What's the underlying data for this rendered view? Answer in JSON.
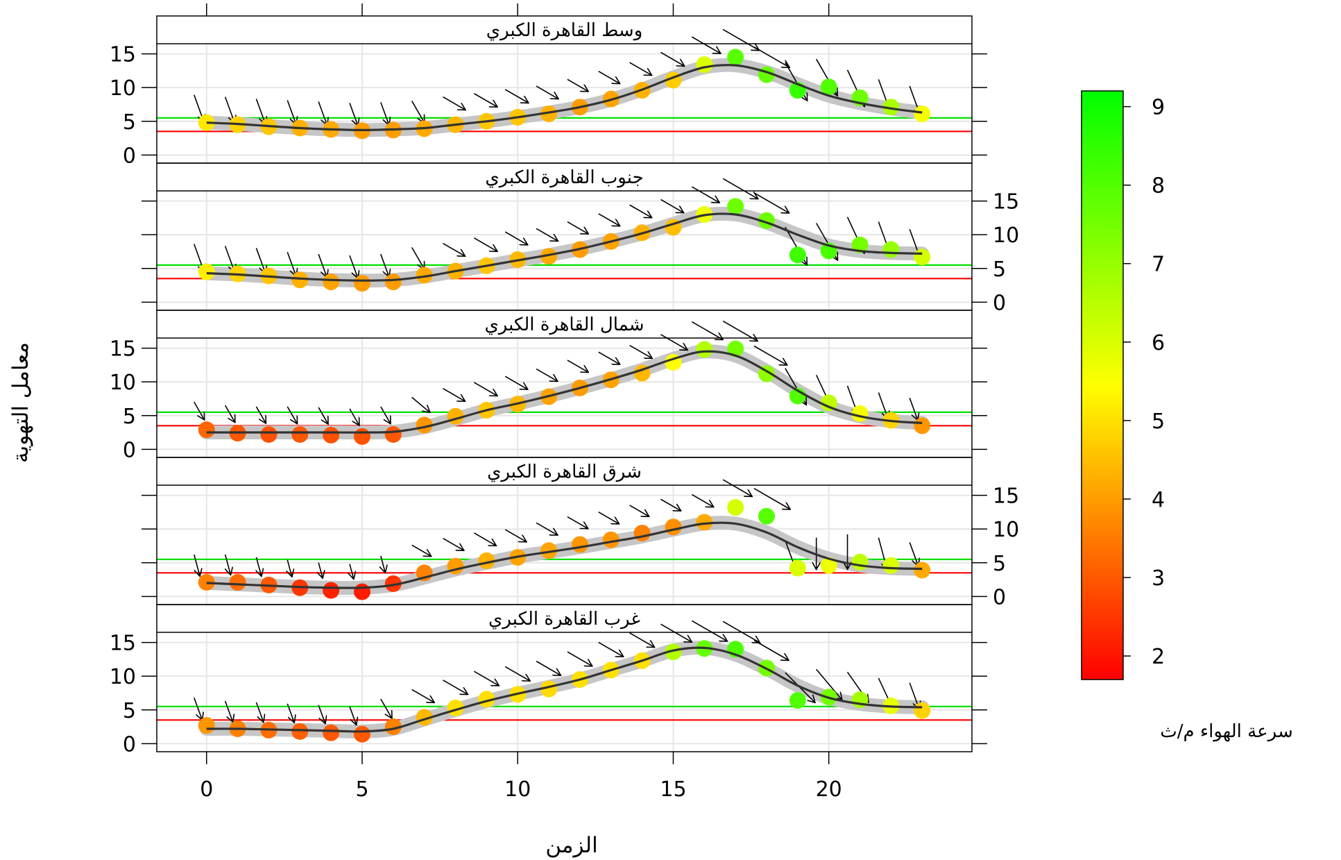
{
  "chart_data": {
    "type": "line",
    "xlabel": "الزمن",
    "ylabel": "معامل التهوية",
    "x_ticks": [
      0,
      5,
      10,
      15,
      20
    ],
    "y_ticks": [
      0,
      5,
      10,
      15
    ],
    "xlim": [
      -1.6,
      24.6
    ],
    "ylim": [
      -1.2,
      16.5
    ],
    "reference_lines": [
      {
        "name": "upper",
        "y": 5.5,
        "color": "#00e000"
      },
      {
        "name": "lower",
        "y": 3.5,
        "color": "#ff0000"
      }
    ],
    "colorbar": {
      "title": "سرعة الهواء م/ث",
      "min": 1.7,
      "max": 9.2,
      "ticks": [
        2,
        3,
        4,
        5,
        6,
        7,
        8,
        9
      ],
      "low_color": "#ff0000",
      "mid_color": "#ffff00",
      "high_color": "#00ff00"
    },
    "x": [
      0,
      1,
      2,
      3,
      4,
      5,
      6,
      7,
      8,
      9,
      10,
      11,
      12,
      13,
      14,
      15,
      16,
      17,
      18,
      19,
      20,
      21,
      22,
      23
    ],
    "panels": [
      {
        "title": "وسط القاهرة الكبري",
        "y": [
          4.8,
          4.5,
          4.2,
          4.0,
          3.8,
          3.6,
          3.7,
          3.9,
          4.5,
          5.0,
          5.6,
          6.1,
          7.1,
          8.3,
          9.6,
          11.1,
          13.4,
          14.5,
          11.9,
          9.6,
          10.1,
          8.5,
          7.1,
          6.1
        ],
        "smooth": [
          4.8,
          4.6,
          4.3,
          4.0,
          3.8,
          3.7,
          3.8,
          4.0,
          4.5,
          5.0,
          5.6,
          6.3,
          7.1,
          8.2,
          9.7,
          11.5,
          13.0,
          13.3,
          12.3,
          10.5,
          8.8,
          7.7,
          6.9,
          6.3
        ],
        "wind_speed": [
          5.1,
          4.8,
          4.6,
          4.3,
          4.2,
          4.0,
          4.0,
          4.2,
          4.4,
          4.6,
          4.6,
          4.3,
          4.0,
          4.1,
          4.3,
          4.7,
          6.0,
          7.9,
          7.7,
          8.4,
          8.0,
          7.6,
          6.7,
          5.6
        ],
        "wind_dir": [
          340,
          340,
          340,
          340,
          340,
          340,
          340,
          330,
          300,
          300,
          300,
          300,
          300,
          300,
          300,
          300,
          300,
          300,
          300,
          330,
          330,
          335,
          340,
          340
        ]
      },
      {
        "title": "جنوب القاهرة الكبري",
        "y": [
          4.5,
          4.2,
          3.9,
          3.3,
          3.0,
          2.8,
          3.0,
          4.0,
          4.6,
          5.4,
          6.3,
          6.8,
          7.8,
          9.0,
          10.3,
          11.1,
          13.0,
          14.2,
          12.1,
          7.0,
          7.6,
          8.5,
          7.8,
          6.7
        ],
        "smooth": [
          4.3,
          4.1,
          3.8,
          3.5,
          3.3,
          3.2,
          3.3,
          3.8,
          4.6,
          5.4,
          6.2,
          7.0,
          7.9,
          9.0,
          10.2,
          11.6,
          12.9,
          13.0,
          11.8,
          10.0,
          8.4,
          7.6,
          7.3,
          7.2
        ],
        "wind_speed": [
          5.2,
          4.8,
          4.6,
          4.3,
          4.1,
          4.0,
          4.0,
          4.2,
          4.3,
          4.6,
          4.4,
          4.2,
          4.0,
          4.1,
          4.3,
          4.5,
          5.7,
          7.6,
          7.6,
          8.3,
          8.1,
          7.5,
          7.0,
          6.1
        ],
        "wind_dir": [
          340,
          340,
          340,
          340,
          340,
          340,
          340,
          330,
          300,
          300,
          300,
          300,
          300,
          300,
          300,
          300,
          300,
          300,
          300,
          330,
          330,
          335,
          340,
          340
        ]
      },
      {
        "title": "شمال القاهرة الكبري",
        "y": [
          2.9,
          2.4,
          2.2,
          2.2,
          2.1,
          1.9,
          2.2,
          3.6,
          4.9,
          5.8,
          6.7,
          7.8,
          9.1,
          10.3,
          11.3,
          12.9,
          14.8,
          14.9,
          11.2,
          7.9,
          6.9,
          5.3,
          4.3,
          3.5
        ],
        "smooth": [
          2.5,
          2.5,
          2.5,
          2.5,
          2.5,
          2.5,
          2.6,
          3.3,
          4.5,
          5.8,
          6.8,
          7.9,
          9.1,
          10.4,
          11.8,
          13.4,
          14.5,
          13.9,
          11.6,
          8.7,
          6.3,
          4.9,
          4.2,
          3.9
        ],
        "wind_speed": [
          3.2,
          3.0,
          2.9,
          3.0,
          2.9,
          2.9,
          3.0,
          3.9,
          4.3,
          4.6,
          4.4,
          4.1,
          4.0,
          4.1,
          4.4,
          5.5,
          6.6,
          7.5,
          7.1,
          8.0,
          6.4,
          5.6,
          4.8,
          3.9
        ],
        "wind_dir": [
          330,
          330,
          330,
          330,
          330,
          330,
          330,
          310,
          300,
          300,
          300,
          300,
          300,
          300,
          300,
          300,
          300,
          300,
          300,
          330,
          335,
          340,
          340,
          340
        ]
      },
      {
        "title": "شرق القاهرة الكبري",
        "y": [
          2.1,
          2.1,
          1.7,
          1.3,
          0.9,
          0.7,
          1.9,
          3.5,
          4.5,
          5.3,
          5.8,
          6.8,
          7.7,
          8.4,
          9.4,
          10.3,
          11.0,
          13.2,
          11.9,
          4.2,
          4.6,
          5.1,
          4.6,
          3.9
        ],
        "smooth": [
          2.0,
          1.8,
          1.6,
          1.4,
          1.3,
          1.3,
          1.7,
          2.8,
          4.0,
          5.0,
          5.9,
          6.6,
          7.3,
          8.1,
          8.9,
          9.9,
          10.8,
          10.8,
          9.5,
          7.3,
          5.6,
          4.6,
          4.2,
          4.1
        ],
        "wind_speed": [
          3.6,
          3.3,
          3.0,
          2.5,
          2.2,
          2.1,
          2.5,
          3.6,
          4.0,
          4.3,
          4.1,
          4.1,
          3.9,
          3.9,
          3.6,
          3.8,
          4.2,
          6.1,
          7.9,
          6.0,
          5.7,
          6.4,
          6.0,
          4.2
        ],
        "wind_dir": [
          345,
          345,
          345,
          345,
          345,
          345,
          345,
          300,
          300,
          300,
          300,
          300,
          300,
          300,
          300,
          300,
          300,
          300,
          300,
          340,
          360,
          360,
          345,
          340
        ]
      },
      {
        "title": "غرب القاهرة الكبري",
        "y": [
          2.7,
          2.2,
          2.0,
          1.8,
          1.6,
          1.4,
          2.5,
          3.9,
          5.3,
          6.6,
          7.3,
          8.1,
          9.5,
          10.9,
          12.3,
          13.6,
          14.1,
          14.0,
          11.2,
          6.4,
          6.9,
          6.5,
          5.6,
          4.9
        ],
        "smooth": [
          2.2,
          2.2,
          2.1,
          2.0,
          1.9,
          1.8,
          2.2,
          3.6,
          5.0,
          6.3,
          7.4,
          8.4,
          9.5,
          10.9,
          12.3,
          13.8,
          14.2,
          13.2,
          11.1,
          8.6,
          6.8,
          5.9,
          5.5,
          5.4
        ],
        "wind_speed": [
          3.9,
          3.6,
          3.3,
          3.1,
          3.0,
          3.0,
          3.6,
          4.4,
          5.0,
          5.0,
          5.0,
          4.9,
          5.0,
          5.0,
          5.0,
          6.6,
          7.7,
          8.1,
          7.5,
          8.0,
          7.5,
          6.8,
          5.8,
          4.8
        ],
        "wind_dir": [
          340,
          340,
          340,
          340,
          340,
          340,
          330,
          300,
          300,
          300,
          300,
          300,
          300,
          300,
          300,
          300,
          300,
          300,
          300,
          315,
          320,
          325,
          335,
          340
        ]
      }
    ]
  }
}
